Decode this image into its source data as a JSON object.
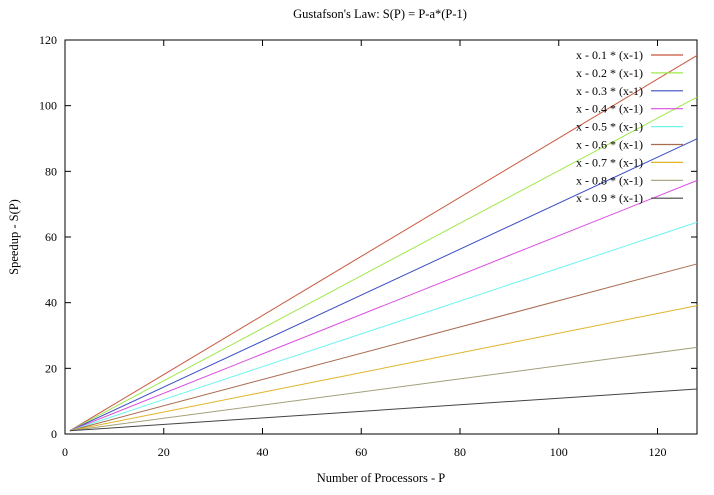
{
  "chart_data": {
    "type": "line",
    "title": "Gustafson's Law: S(P) = P-a*(P-1)",
    "xlabel": "Number of Processors - P",
    "ylabel": "Speedup - S(P)",
    "xlim": [
      0,
      128
    ],
    "ylim": [
      0,
      120
    ],
    "xticks": [
      0,
      20,
      40,
      60,
      80,
      100,
      120
    ],
    "yticks": [
      0,
      20,
      40,
      60,
      80,
      100,
      120
    ],
    "grid": false,
    "legend_position": "top-right",
    "x": [
      1,
      128
    ],
    "series": [
      {
        "name": "x - 0.1 * (x-1)",
        "a": 0.1,
        "values": [
          1,
          115.3
        ],
        "color": "#c8553d"
      },
      {
        "name": "x - 0.2 * (x-1)",
        "a": 0.2,
        "values": [
          1,
          102.6
        ],
        "color": "#9ee84a"
      },
      {
        "name": "x - 0.3 * (x-1)",
        "a": 0.3,
        "values": [
          1,
          89.9
        ],
        "color": "#3b4fc4"
      },
      {
        "name": "x - 0.4 * (x-1)",
        "a": 0.4,
        "values": [
          1,
          77.2
        ],
        "color": "#d94ee0"
      },
      {
        "name": "x - 0.5 * (x-1)",
        "a": 0.5,
        "values": [
          1,
          64.5
        ],
        "color": "#6ff5ee"
      },
      {
        "name": "x - 0.6 * (x-1)",
        "a": 0.6,
        "values": [
          1,
          51.8
        ],
        "color": "#a96a4e"
      },
      {
        "name": "x - 0.7 * (x-1)",
        "a": 0.7,
        "values": [
          1,
          39.1
        ],
        "color": "#e0b42a"
      },
      {
        "name": "x - 0.8 * (x-1)",
        "a": 0.8,
        "values": [
          1,
          26.4
        ],
        "color": "#a3a07a"
      },
      {
        "name": "x - 0.9 * (x-1)",
        "a": 0.9,
        "values": [
          1,
          13.7
        ],
        "color": "#444444"
      }
    ]
  }
}
